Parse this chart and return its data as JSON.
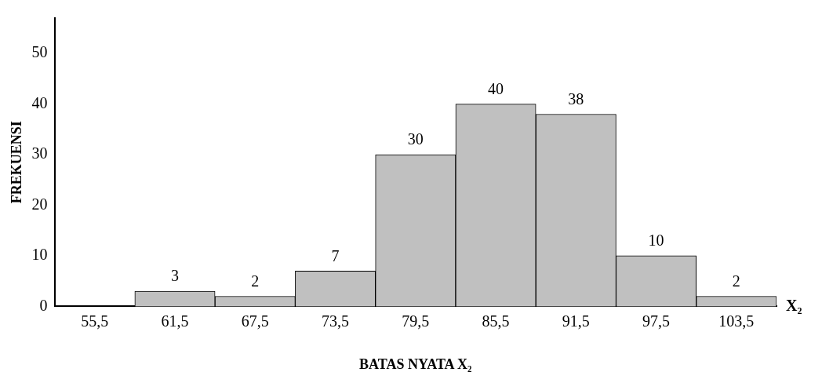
{
  "chart_data": {
    "type": "bar",
    "xlabel": "BATAS NYATA X₂",
    "ylabel": "FREKUENSI",
    "annotations": [
      "X₂"
    ],
    "categories": [
      "55,5",
      "61,5",
      "67,5",
      "73,5",
      "79,5",
      "85,5",
      "91,5",
      "97,5",
      "103,5"
    ],
    "values": [
      null,
      3,
      2,
      7,
      30,
      40,
      38,
      10,
      2
    ],
    "color": "#c0c0c0",
    "ylim": [
      0,
      57
    ],
    "yticks": [
      0,
      10,
      20,
      30,
      40,
      50
    ],
    "grid": false,
    "legend": false,
    "data_labels": true
  }
}
